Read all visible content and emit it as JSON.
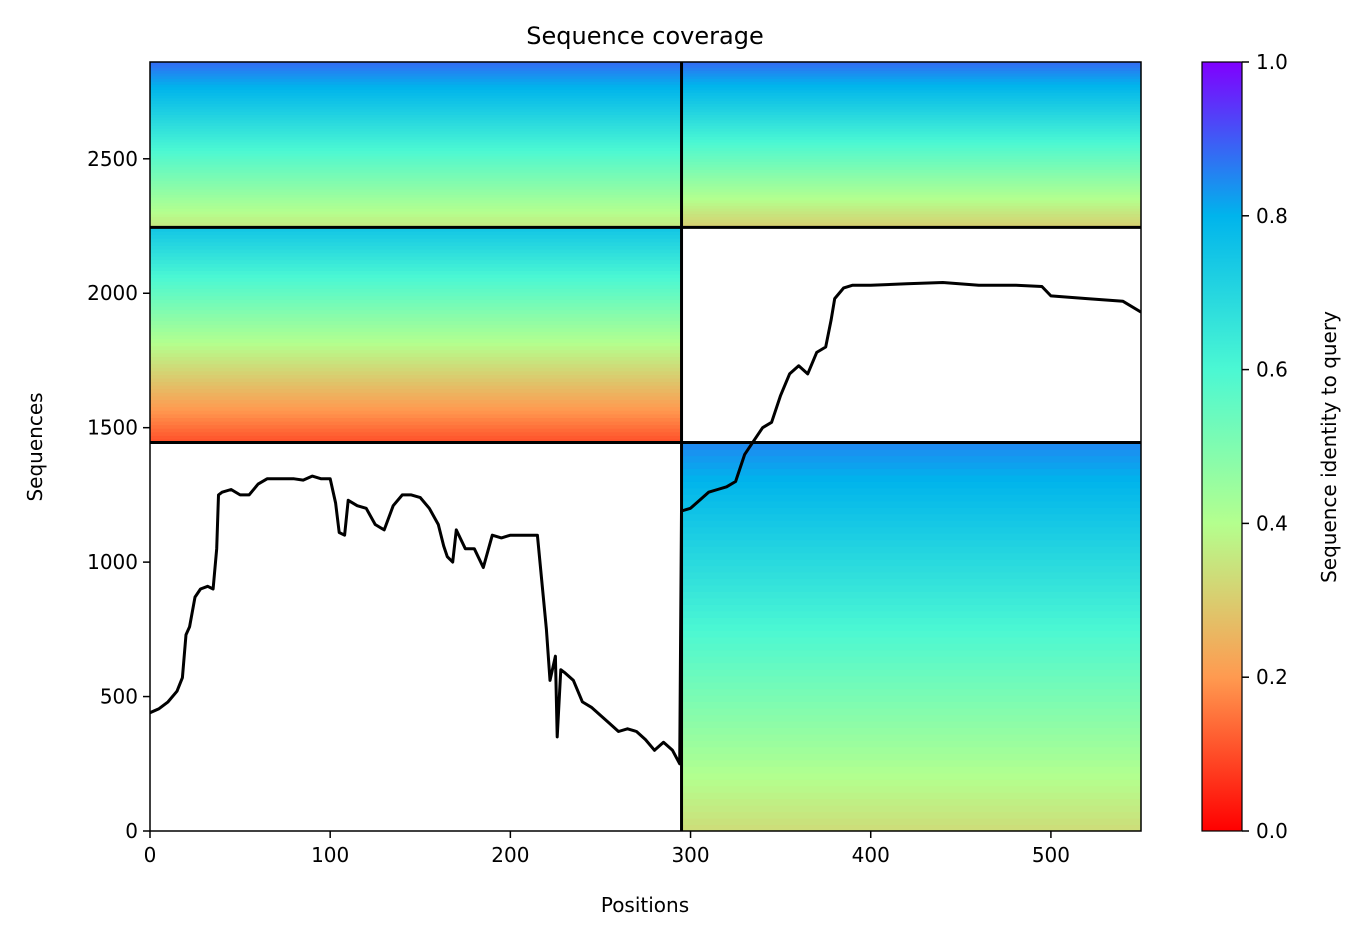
{
  "chart_data": {
    "type": "heatmap",
    "title": "Sequence coverage",
    "xlabel": "Positions",
    "ylabel": "Sequences",
    "xlim": [
      0,
      550
    ],
    "ylim": [
      0,
      2860
    ],
    "xticks": [
      0,
      100,
      200,
      300,
      400,
      500
    ],
    "yticks": [
      0,
      500,
      1000,
      1500,
      2000,
      2500
    ],
    "colorbar": {
      "label": "Sequence identity to query",
      "colormap": "rainbow_r",
      "range": [
        0,
        1
      ],
      "ticks": [
        "0.0",
        "0.2",
        "0.4",
        "0.6",
        "0.8",
        "1.0"
      ],
      "stops": [
        "#ff0000",
        "#ff9a50",
        "#b4ff8e",
        "#4bf8d3",
        "#00b4ec",
        "#8000ff"
      ]
    },
    "chain_boundaries": {
      "x": [
        295
      ],
      "y": [
        1445,
        2245
      ]
    },
    "blocks": [
      {
        "chain_x": [
          0,
          295
        ],
        "chain_y": [
          2245,
          2860
        ],
        "identity_bottom": 0.35,
        "identity_top": 0.88
      },
      {
        "chain_x": [
          295,
          550
        ],
        "chain_y": [
          2245,
          2860
        ],
        "identity_bottom": 0.3,
        "identity_top": 0.88
      },
      {
        "chain_x": [
          0,
          295
        ],
        "chain_y": [
          1445,
          2245
        ],
        "identity_bottom": 0.1,
        "identity_top": 0.75
      },
      {
        "chain_x": [
          295,
          550
        ],
        "chain_y": [
          0,
          1445
        ],
        "identity_bottom": 0.33,
        "identity_top": 0.85
      }
    ],
    "coverage_line": {
      "x": [
        0,
        5,
        10,
        15,
        18,
        20,
        22,
        25,
        28,
        32,
        35,
        37,
        38,
        40,
        45,
        50,
        55,
        60,
        65,
        70,
        75,
        80,
        85,
        90,
        95,
        100,
        103,
        105,
        108,
        110,
        115,
        120,
        125,
        130,
        135,
        140,
        145,
        150,
        155,
        160,
        163,
        165,
        168,
        170,
        175,
        180,
        185,
        190,
        195,
        200,
        205,
        210,
        215,
        220,
        222,
        225,
        226,
        228,
        230,
        235,
        240,
        245,
        250,
        255,
        260,
        265,
        270,
        275,
        280,
        285,
        290,
        294,
        295,
        300,
        305,
        310,
        315,
        320,
        325,
        330,
        335,
        340,
        345,
        350,
        355,
        360,
        365,
        370,
        375,
        378,
        380,
        385,
        390,
        400,
        420,
        440,
        460,
        480,
        495,
        500,
        520,
        540,
        550
      ],
      "y": [
        440,
        455,
        480,
        520,
        570,
        730,
        760,
        870,
        900,
        910,
        900,
        1050,
        1250,
        1260,
        1270,
        1250,
        1250,
        1290,
        1310,
        1310,
        1310,
        1310,
        1305,
        1320,
        1310,
        1310,
        1220,
        1110,
        1100,
        1230,
        1210,
        1200,
        1140,
        1120,
        1210,
        1250,
        1250,
        1240,
        1200,
        1140,
        1060,
        1020,
        1000,
        1120,
        1050,
        1050,
        980,
        1100,
        1090,
        1100,
        1100,
        1100,
        1100,
        750,
        560,
        650,
        350,
        600,
        590,
        560,
        480,
        460,
        430,
        400,
        370,
        380,
        370,
        340,
        300,
        330,
        300,
        250,
        1190,
        1200,
        1230,
        1260,
        1270,
        1280,
        1300,
        1400,
        1450,
        1500,
        1520,
        1620,
        1700,
        1730,
        1700,
        1780,
        1800,
        1900,
        1980,
        2020,
        2030,
        2030,
        2035,
        2040,
        2030,
        2030,
        2025,
        1990,
        1980,
        1970,
        1930
      ]
    }
  }
}
